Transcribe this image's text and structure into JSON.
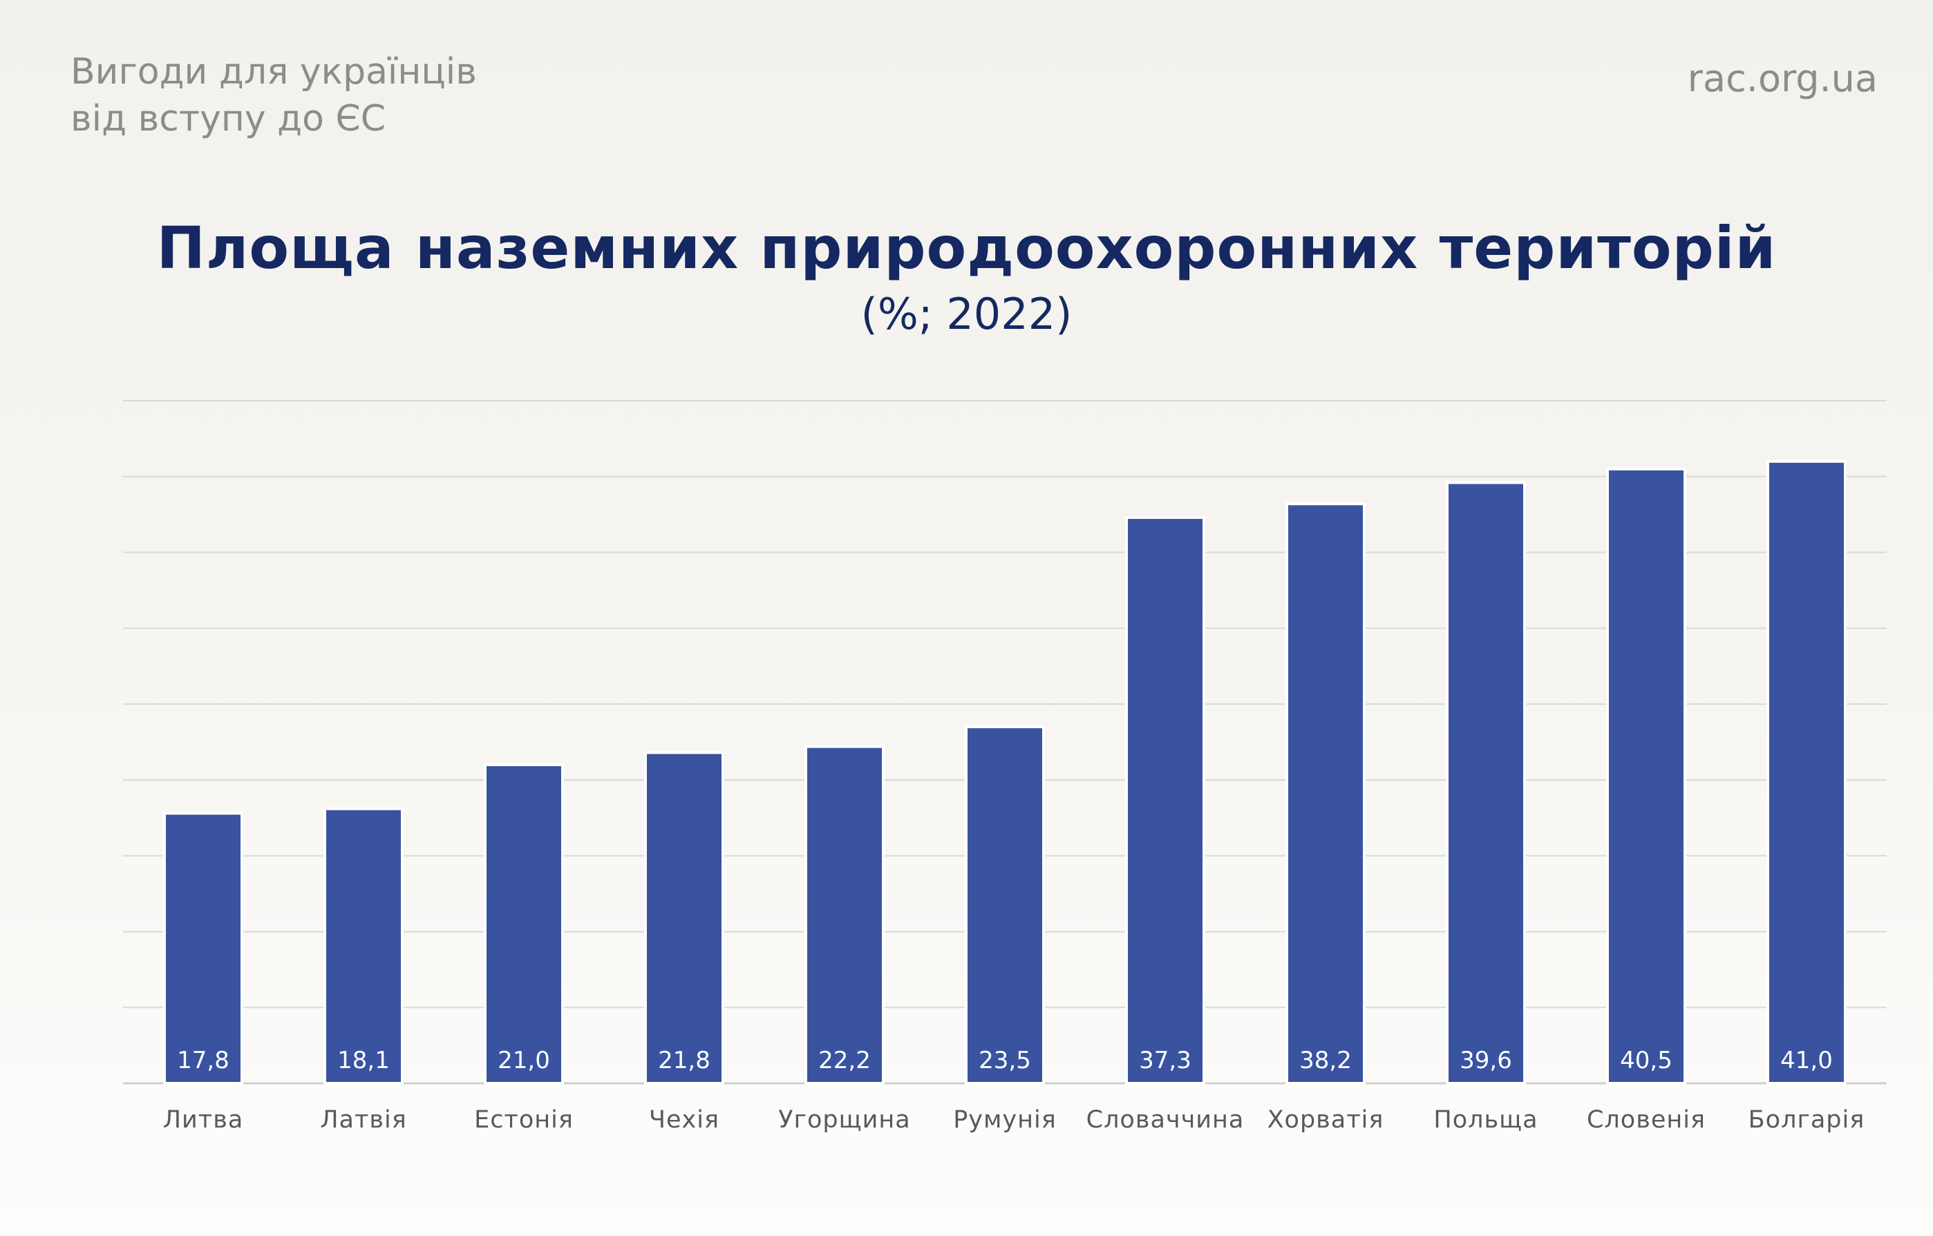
{
  "header": {
    "brand_line1": "Вигоди для українців",
    "brand_line2": "від вступу до ЄС",
    "site": "rac.org.ua"
  },
  "chart_data": {
    "type": "bar",
    "title": "Площа наземних природоохоронних територій",
    "subtitle": "(%; 2022)",
    "categories": [
      "Литва",
      "Латвія",
      "Естонія",
      "Чехія",
      "Угорщина",
      "Румунія",
      "Словаччина",
      "Хорватія",
      "Польща",
      "Словенія",
      "Болгарія"
    ],
    "values": [
      17.8,
      18.1,
      21.0,
      21.8,
      22.2,
      23.5,
      37.3,
      38.2,
      39.6,
      40.5,
      41.0
    ],
    "value_labels": [
      "17,8",
      "18,1",
      "21,0",
      "21,8",
      "22,2",
      "23,5",
      "37,3",
      "38,2",
      "39,6",
      "40,5",
      "41,0"
    ],
    "ylim": [
      0,
      45
    ],
    "grid_step": 5,
    "grid": true,
    "xlabel": "",
    "ylabel": "",
    "colors": {
      "bar": "#3a53a0",
      "bar_stroke": "#ffffff",
      "grid": "#d9d9d9",
      "axis": "#cfcfcf",
      "value_label": "#ffffff",
      "category_label": "#595959"
    }
  }
}
